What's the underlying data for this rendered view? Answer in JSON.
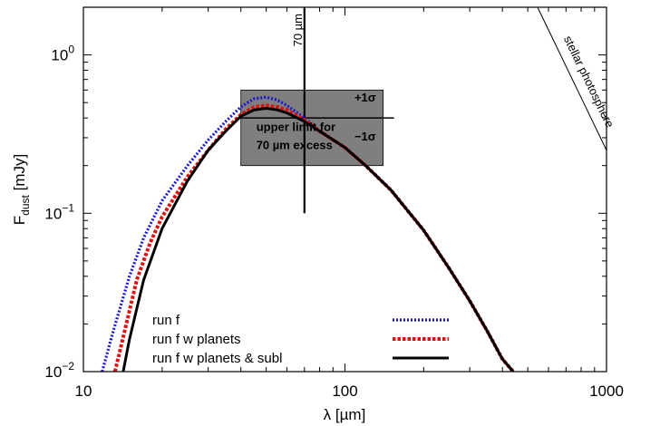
{
  "chart_data": {
    "type": "line",
    "title": "",
    "xlabel": "λ [µm]",
    "ylabel_main": "F",
    "ylabel_sub": "dust",
    "ylabel_unit": " [mJy]",
    "xscale": "log",
    "yscale": "log",
    "xlim": [
      10,
      1000
    ],
    "ylim": [
      0.01,
      2
    ],
    "x_ticks": [
      {
        "value": 10,
        "label": "10"
      },
      {
        "value": 100,
        "label": "100"
      },
      {
        "value": 1000,
        "label": "1000"
      }
    ],
    "y_ticks": [
      {
        "value": 0.01,
        "base": "10",
        "exp": "−2"
      },
      {
        "value": 0.1,
        "base": "10",
        "exp": "−1"
      },
      {
        "value": 1,
        "base": "10",
        "exp": "0"
      }
    ],
    "legend_position": "bottom-left",
    "series": [
      {
        "name": "run f",
        "style": "dotted",
        "color": "#1a1acc",
        "x": [
          11.8,
          13,
          15,
          17,
          20,
          25,
          30,
          35,
          40,
          45,
          50,
          55,
          60,
          70,
          80,
          100,
          120,
          150,
          200,
          250,
          300,
          350,
          400,
          440
        ],
        "y": [
          0.01,
          0.018,
          0.04,
          0.07,
          0.12,
          0.2,
          0.29,
          0.38,
          0.47,
          0.53,
          0.54,
          0.52,
          0.48,
          0.4,
          0.33,
          0.26,
          0.2,
          0.14,
          0.078,
          0.045,
          0.028,
          0.018,
          0.012,
          0.01
        ]
      },
      {
        "name": "run f w planets",
        "style": "dashed",
        "color": "#dd1111",
        "x": [
          13.2,
          14,
          16,
          18,
          20,
          25,
          30,
          35,
          40,
          45,
          50,
          55,
          60,
          70,
          80,
          100,
          120,
          150,
          200,
          250,
          300,
          350,
          400,
          440
        ],
        "y": [
          0.01,
          0.015,
          0.038,
          0.065,
          0.095,
          0.17,
          0.25,
          0.34,
          0.42,
          0.47,
          0.48,
          0.47,
          0.45,
          0.39,
          0.33,
          0.26,
          0.2,
          0.14,
          0.078,
          0.045,
          0.028,
          0.018,
          0.012,
          0.01
        ]
      },
      {
        "name": "run f w planets & subl",
        "style": "solid",
        "color": "#000000",
        "x": [
          14.2,
          15,
          17,
          20,
          25,
          30,
          35,
          40,
          45,
          50,
          55,
          60,
          70,
          80,
          100,
          120,
          150,
          200,
          250,
          300,
          350,
          400,
          440
        ],
        "y": [
          0.01,
          0.016,
          0.038,
          0.08,
          0.16,
          0.25,
          0.33,
          0.41,
          0.45,
          0.46,
          0.45,
          0.43,
          0.38,
          0.33,
          0.26,
          0.2,
          0.14,
          0.078,
          0.045,
          0.028,
          0.018,
          0.012,
          0.01
        ]
      }
    ],
    "photosphere": {
      "label": "stellar photosphere",
      "x": [
        545,
        1000
      ],
      "y": [
        2.0,
        0.25
      ]
    },
    "excess_box": {
      "x": [
        40,
        140
      ],
      "y": [
        0.2,
        0.6
      ],
      "color": "#7f7f7f",
      "central_value": 0.4,
      "plus_label": "+1σ",
      "minus_label": "−1σ",
      "note_line1": "upper limit for",
      "note_line2": "70 µm excess",
      "note_color": "#f2ee66"
    },
    "marker_70": {
      "x": 70,
      "y_low": 0.1,
      "y_high": 2.0,
      "label": "70 µm"
    }
  }
}
